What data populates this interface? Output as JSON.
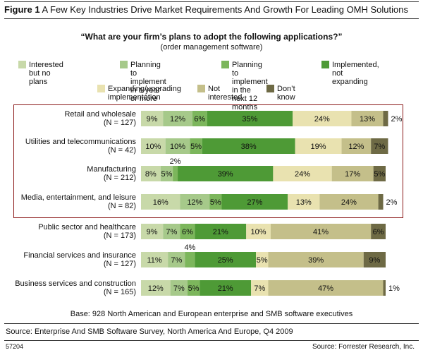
{
  "figure": {
    "label": "Figure 1",
    "title": "A Few Key Industries Drive Market Requirements And Growth For Leading OMH Solutions"
  },
  "question": "“What are your firm’s plans to adopt the following applications?”",
  "subquestion": "(order management software)",
  "legend": [
    {
      "label": "Interested but no plans",
      "color": "#c8d9a9"
    },
    {
      "label": "Planning to implement\nin a year or more",
      "color": "#a6c98a"
    },
    {
      "label": "Planning to implement\nin the next 12 months",
      "color": "#7cb65c"
    },
    {
      "label": "Implemented, not\nexpanding",
      "color": "#4e9a36"
    },
    {
      "label": "Expanding/upgrading\nimplementation",
      "color": "#e9e2b0"
    },
    {
      "label": "Not interested",
      "color": "#c4bf8a"
    },
    {
      "label": "Don’t know",
      "color": "#6e6a45"
    }
  ],
  "chart_data": {
    "type": "bar",
    "orientation": "horizontal",
    "stacked": true,
    "categories": [
      "Retail and wholesale\n(N = 127)",
      "Utilities and telecommunications\n(N = 42)",
      "Manufacturing\n(N = 212)",
      "Media, entertainment, and leisure\n(N = 82)",
      "Public sector and healthcare\n(N = 173)",
      "Financial services and insurance\n(N = 127)",
      "Business services and construction\n(N = 165)"
    ],
    "series": [
      {
        "name": "Interested but no plans",
        "values": [
          9,
          10,
          8,
          16,
          9,
          11,
          12
        ]
      },
      {
        "name": "Planning to implement in a year or more",
        "values": [
          12,
          10,
          5,
          12,
          7,
          7,
          7
        ]
      },
      {
        "name": "Planning to implement in the next 12 months",
        "values": [
          6,
          5,
          2,
          5,
          6,
          4,
          5
        ]
      },
      {
        "name": "Implemented, not expanding",
        "values": [
          35,
          38,
          39,
          27,
          21,
          25,
          21
        ]
      },
      {
        "name": "Expanding/upgrading implementation",
        "values": [
          24,
          19,
          24,
          13,
          10,
          5,
          7
        ]
      },
      {
        "name": "Not interested",
        "values": [
          13,
          12,
          17,
          24,
          41,
          39,
          47
        ]
      },
      {
        "name": "Don’t know",
        "values": [
          2,
          7,
          5,
          2,
          6,
          9,
          1
        ]
      }
    ],
    "data_labels": [
      [
        "9%",
        "12%",
        "6%",
        "35%",
        "24%",
        "13%",
        "2%"
      ],
      [
        "10%",
        "10%",
        "5%",
        "38%",
        "19%",
        "12%",
        "7%"
      ],
      [
        "8%",
        "5%",
        "2%",
        "39%",
        "24%",
        "17%",
        "5%"
      ],
      [
        "16%",
        "12%",
        "5%",
        "27%",
        "13%",
        "24%",
        "2%"
      ],
      [
        "9%",
        "7%",
        "6%",
        "21%",
        "10%",
        "41%",
        "6%"
      ],
      [
        "11%",
        "7%",
        "4%",
        "25%",
        "5%",
        "39%",
        "9%"
      ],
      [
        "12%",
        "7%",
        "5%",
        "21%",
        "7%",
        "47%",
        "1%"
      ]
    ],
    "xlim": [
      0,
      100
    ],
    "legend_position": "top"
  },
  "base_note": "Base: 928 North American and European enterprise and SMB software executives",
  "source_note": "Source: Enterprise And SMB Software Survey, North America And Europe, Q4 2009",
  "figure_id": "57204",
  "credit": "Source: Forrester Research, Inc."
}
